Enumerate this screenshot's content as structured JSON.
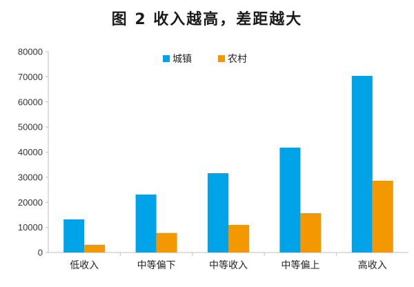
{
  "chart_data": {
    "type": "bar",
    "title": "图 2  收入越高，差距越大",
    "categories": [
      "低收入",
      "中等偏下",
      "中等收入",
      "中等偏上",
      "高收入"
    ],
    "series": [
      {
        "name": "城镇",
        "color": "#00a2e8",
        "values": [
          13200,
          23100,
          31600,
          41800,
          70400
        ]
      },
      {
        "name": "农村",
        "color": "#f39800",
        "values": [
          3100,
          7800,
          11000,
          15700,
          28600
        ]
      }
    ],
    "ylim": [
      0,
      80000
    ],
    "yticks": [
      0,
      10000,
      20000,
      30000,
      40000,
      50000,
      60000,
      70000,
      80000
    ],
    "grid": false,
    "legend": "top-center"
  }
}
